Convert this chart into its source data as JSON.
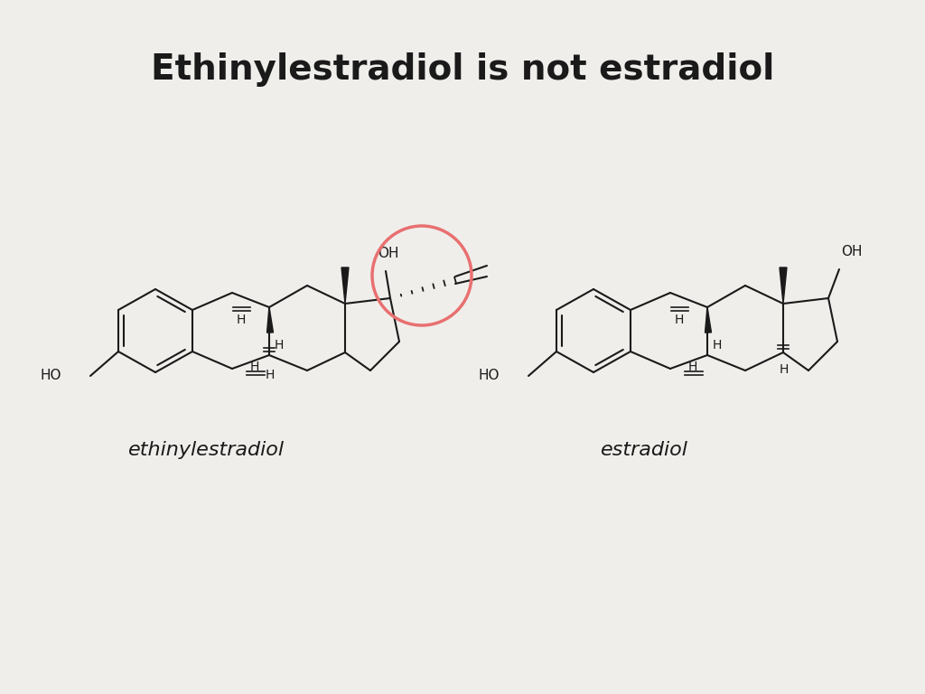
{
  "title": "Ethinylestradiol is not estradiol",
  "title_fontsize": 28,
  "title_fontweight": "bold",
  "label1": "ethinylestradiol",
  "label2": "estradiol",
  "label_fontsize": 16,
  "background_color": "#f0eeeb",
  "molecule_color": "#1a1a1a",
  "circle_color": "#e87070",
  "circle_linewidth": 2.5
}
